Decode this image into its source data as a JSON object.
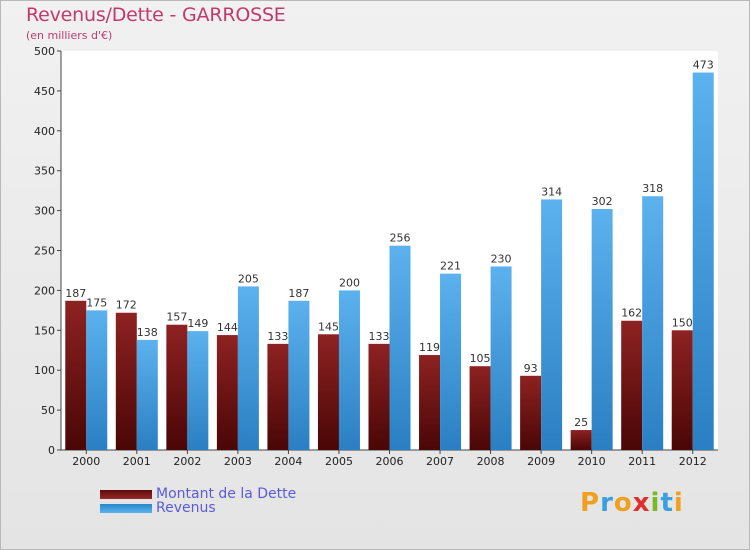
{
  "chart_data": {
    "type": "bar",
    "title": "Revenus/Dette - GARROSSE",
    "subtitle": "(en milliers d'€)",
    "categories": [
      "2000",
      "2001",
      "2002",
      "2003",
      "2004",
      "2005",
      "2006",
      "2007",
      "2008",
      "2009",
      "2010",
      "2011",
      "2012"
    ],
    "series": [
      {
        "name": "Montant de la Dette",
        "color": "#7a1212",
        "values": [
          187,
          172,
          157,
          144,
          133,
          145,
          133,
          119,
          105,
          93,
          25,
          162,
          150
        ]
      },
      {
        "name": "Revenus",
        "color": "#4aa3e6",
        "values": [
          175,
          138,
          149,
          205,
          187,
          200,
          256,
          221,
          230,
          314,
          302,
          318,
          473
        ]
      }
    ],
    "ylim": [
      0,
      500
    ],
    "yticks": [
      0,
      50,
      100,
      150,
      200,
      250,
      300,
      350,
      400,
      450,
      500
    ],
    "grid": false,
    "legend": "bottom-left"
  },
  "logo": {
    "letters": [
      "P",
      "r",
      "o",
      "x",
      "i",
      "t",
      "i"
    ],
    "colors": [
      "#f0a020",
      "#3aa0dd",
      "#f0a020",
      "#e0302a",
      "#7ab828",
      "#3aa0dd",
      "#f0a020"
    ]
  }
}
